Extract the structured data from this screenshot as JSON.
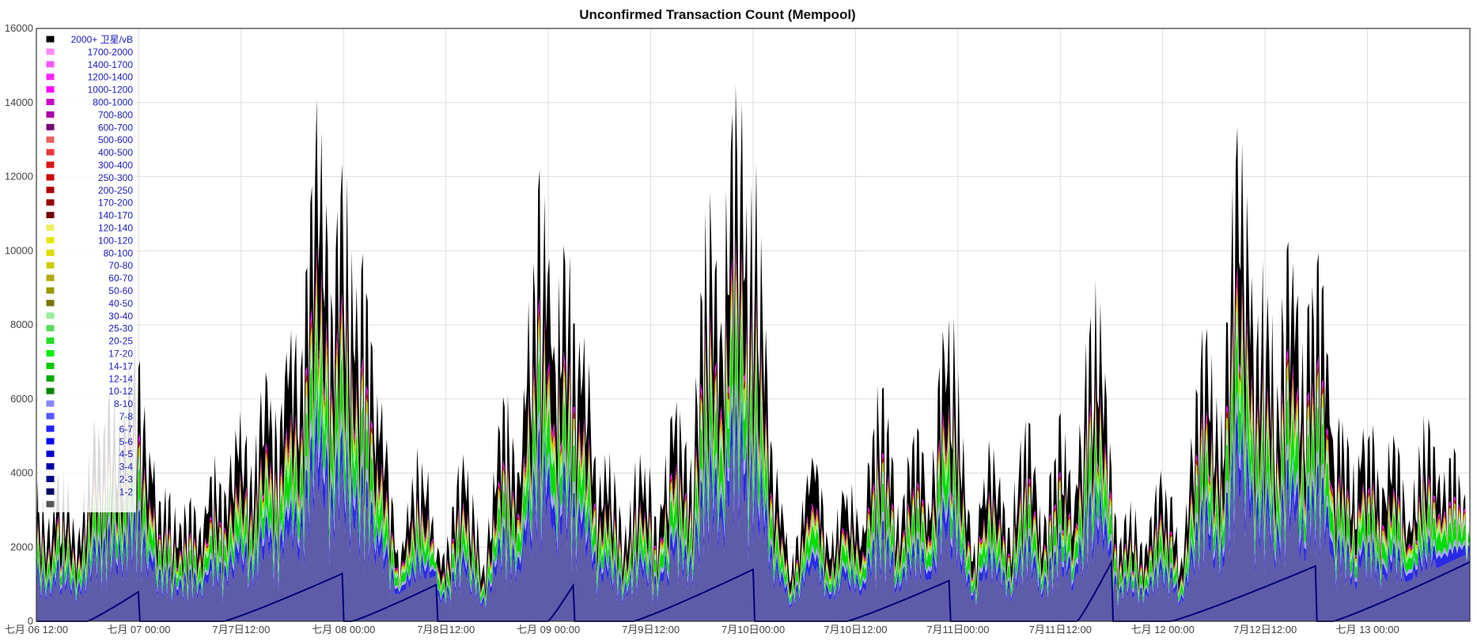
{
  "chart_data": {
    "type": "area",
    "stacked": true,
    "title": "Unconfirmed Transaction Count (Mempool)",
    "xlabel": "",
    "ylabel": "",
    "ylim": [
      0,
      16000
    ],
    "yticks": [
      0,
      2000,
      4000,
      6000,
      8000,
      10000,
      12000,
      14000,
      16000
    ],
    "ytick_labels": [
      "0",
      "2000",
      "4000",
      "6000",
      "8000",
      "10000",
      "12000",
      "14000",
      "16000"
    ],
    "xlim": [
      0,
      168
    ],
    "xticks": [
      0,
      12,
      24,
      36,
      48,
      60,
      72,
      84,
      96,
      108,
      120,
      132,
      144,
      156
    ],
    "xtick_labels": [
      "七月 06 12:00",
      "七月 07 00:00",
      "7月7日12:00",
      "七月 08 00:00",
      "7月8日12:00",
      "七月 09 00:00",
      "7月9日12:00",
      "7月10日00:00",
      "7月10日12:00",
      "7月11日00:00",
      "7月11日12:00",
      "七月 12 00:00",
      "7月12日12:00",
      "七月 13 00:00"
    ],
    "grid": true,
    "legend_position": "top-left",
    "legend": [
      {
        "label": "2000+ 卫星/vB",
        "color": "#000000"
      },
      {
        "label": "1700-2000",
        "color": "#ff88ff"
      },
      {
        "label": "1400-1700",
        "color": "#ff55ff"
      },
      {
        "label": "1200-1400",
        "color": "#ff22ff"
      },
      {
        "label": "1000-1200",
        "color": "#ff00ff"
      },
      {
        "label": "800-1000",
        "color": "#cc00cc"
      },
      {
        "label": "700-800",
        "color": "#aa00aa"
      },
      {
        "label": "600-700",
        "color": "#770077"
      },
      {
        "label": "500-600",
        "color": "#e86060"
      },
      {
        "label": "400-500",
        "color": "#e83838"
      },
      {
        "label": "300-400",
        "color": "#dd1515"
      },
      {
        "label": "250-300",
        "color": "#cc0000"
      },
      {
        "label": "200-250",
        "color": "#b00000"
      },
      {
        "label": "170-200",
        "color": "#990000"
      },
      {
        "label": "140-170",
        "color": "#770000"
      },
      {
        "label": "120-140",
        "color": "#eeee66"
      },
      {
        "label": "100-120",
        "color": "#e6e600"
      },
      {
        "label": "80-100",
        "color": "#dede00"
      },
      {
        "label": "70-80",
        "color": "#cccc00"
      },
      {
        "label": "60-70",
        "color": "#b0aa00"
      },
      {
        "label": "50-60",
        "color": "#999900"
      },
      {
        "label": "40-50",
        "color": "#777700"
      },
      {
        "label": "30-40",
        "color": "#99ee99"
      },
      {
        "label": "25-30",
        "color": "#55dd55"
      },
      {
        "label": "20-25",
        "color": "#22dd22"
      },
      {
        "label": "17-20",
        "color": "#00ee00"
      },
      {
        "label": "14-17",
        "color": "#00cc00"
      },
      {
        "label": "12-14",
        "color": "#00aa00"
      },
      {
        "label": "10-12",
        "color": "#008800"
      },
      {
        "label": "8-10",
        "color": "#8888ff"
      },
      {
        "label": "7-8",
        "color": "#5555ff"
      },
      {
        "label": "6-7",
        "color": "#2222ff"
      },
      {
        "label": "5-6",
        "color": "#0000ff"
      },
      {
        "label": "4-5",
        "color": "#0000cc"
      },
      {
        "label": "3-4",
        "color": "#0000aa"
      },
      {
        "label": "2-3",
        "color": "#000088"
      },
      {
        "label": "1-2",
        "color": "#000066"
      },
      {
        "label": "",
        "color": "#555555"
      }
    ],
    "series_colors": {
      "base": "#5e5ca8",
      "blue_band": "#2a2ae6",
      "light_blue": "#a8a8ff",
      "green": "#00dd00",
      "light_green": "#99ee99",
      "yellow": "#cccc00",
      "red": "#cc0000",
      "magenta": "#ff00ff",
      "top": "#000000",
      "line": "#00007a"
    },
    "peaks": [
      {
        "t": 0,
        "total": 3400
      },
      {
        "t": 3,
        "total": 3900
      },
      {
        "t": 7,
        "total": 5200
      },
      {
        "t": 9,
        "total": 6200
      },
      {
        "t": 11.5,
        "total": 7600
      },
      {
        "t": 13,
        "total": 4600
      },
      {
        "t": 15,
        "total": 3600
      },
      {
        "t": 18,
        "total": 3200
      },
      {
        "t": 21,
        "total": 4100
      },
      {
        "t": 24,
        "total": 5600
      },
      {
        "t": 27,
        "total": 6600
      },
      {
        "t": 30,
        "total": 8000
      },
      {
        "t": 33,
        "total": 14000
      },
      {
        "t": 36,
        "total": 12200
      },
      {
        "t": 38,
        "total": 10500
      },
      {
        "t": 40,
        "total": 6100
      },
      {
        "t": 45,
        "total": 4600
      },
      {
        "t": 50,
        "total": 4200
      },
      {
        "t": 55,
        "total": 5800
      },
      {
        "t": 59,
        "total": 12200
      },
      {
        "t": 62,
        "total": 10400
      },
      {
        "t": 64,
        "total": 7600
      },
      {
        "t": 67,
        "total": 4300
      },
      {
        "t": 71,
        "total": 4600
      },
      {
        "t": 75,
        "total": 6100
      },
      {
        "t": 79,
        "total": 11500
      },
      {
        "t": 82,
        "total": 15400
      },
      {
        "t": 84,
        "total": 12400
      },
      {
        "t": 86,
        "total": 4400
      },
      {
        "t": 91,
        "total": 4400
      },
      {
        "t": 95,
        "total": 3700
      },
      {
        "t": 99,
        "total": 6300
      },
      {
        "t": 103,
        "total": 5200
      },
      {
        "t": 107,
        "total": 8800
      },
      {
        "t": 112,
        "total": 4600
      },
      {
        "t": 116,
        "total": 5200
      },
      {
        "t": 120,
        "total": 5300
      },
      {
        "t": 124,
        "total": 9000
      },
      {
        "t": 128,
        "total": 3000
      },
      {
        "t": 132,
        "total": 4100
      },
      {
        "t": 137,
        "total": 8000
      },
      {
        "t": 141,
        "total": 13300
      },
      {
        "t": 144,
        "total": 9500
      },
      {
        "t": 147,
        "total": 10500
      },
      {
        "t": 150,
        "total": 10200
      },
      {
        "t": 153,
        "total": 5600
      },
      {
        "t": 156,
        "total": 5500
      },
      {
        "t": 159,
        "total": 4800
      },
      {
        "t": 163,
        "total": 5600
      },
      {
        "t": 166,
        "total": 4600
      },
      {
        "t": 168,
        "total": 1200
      }
    ],
    "base_ramps": [
      {
        "start": 6,
        "end": 12,
        "peak": 800
      },
      {
        "start": 22,
        "end": 36,
        "peak": 1300
      },
      {
        "start": 37,
        "end": 47,
        "peak": 1000
      },
      {
        "start": 60,
        "end": 63,
        "peak": 1000
      },
      {
        "start": 70,
        "end": 84,
        "peak": 1400
      },
      {
        "start": 95,
        "end": 107,
        "peak": 1100
      },
      {
        "start": 122,
        "end": 126,
        "peak": 1600
      },
      {
        "start": 133,
        "end": 150,
        "peak": 1500
      },
      {
        "start": 152,
        "end": 168,
        "peak": 1600
      }
    ]
  }
}
